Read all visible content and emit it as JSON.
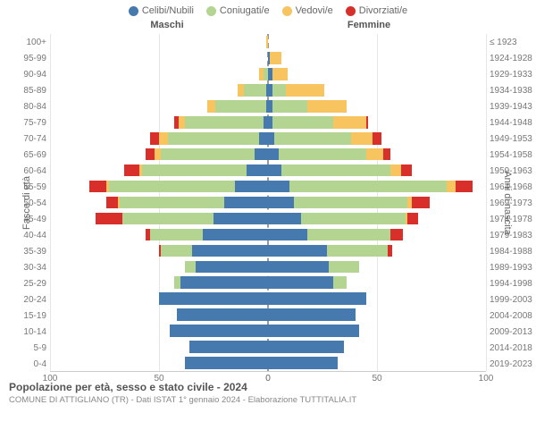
{
  "chart": {
    "type": "population-pyramid",
    "title": "Popolazione per età, sesso e stato civile - 2024",
    "subtitle": "COMUNE DI ATTIGLIANO (TR) - Dati ISTAT 1° gennaio 2024 - Elaborazione TUTTITALIA.IT",
    "header_m": "Maschi",
    "header_f": "Femmine",
    "ylabel_left": "Fasce di età",
    "ylabel_right": "Anni di nascita",
    "colors": {
      "celibi": "#4679ae",
      "coniugati": "#b4d491",
      "vedovi": "#f7c45f",
      "divorziati": "#d82f2b",
      "grid": "#e6e6e6",
      "center": "#999999"
    },
    "legend": [
      {
        "key": "celibi",
        "label": "Celibi/Nubili"
      },
      {
        "key": "coniugati",
        "label": "Coniugati/e"
      },
      {
        "key": "vedovi",
        "label": "Vedovi/e"
      },
      {
        "key": "divorziati",
        "label": "Divorziati/e"
      }
    ],
    "xmax": 100,
    "xticks_m": [
      100,
      50,
      0
    ],
    "xticks_f": [
      0,
      50,
      100
    ],
    "age_bands": [
      "100+",
      "95-99",
      "90-94",
      "85-89",
      "80-84",
      "75-79",
      "70-74",
      "65-69",
      "60-64",
      "55-59",
      "50-54",
      "45-49",
      "40-44",
      "35-39",
      "30-34",
      "25-29",
      "20-24",
      "15-19",
      "10-14",
      "5-9",
      "0-4"
    ],
    "birth_years": [
      "≤ 1923",
      "1924-1928",
      "1929-1933",
      "1934-1938",
      "1939-1943",
      "1944-1948",
      "1949-1953",
      "1954-1958",
      "1959-1963",
      "1964-1968",
      "1969-1973",
      "1974-1978",
      "1979-1983",
      "1984-1988",
      "1989-1993",
      "1994-1998",
      "1999-2003",
      "2004-2008",
      "2009-2013",
      "2014-2018",
      "2019-2023"
    ],
    "rows": [
      {
        "m": {
          "c": 0,
          "g": 0,
          "v": 1,
          "d": 0
        },
        "f": {
          "c": 0,
          "g": 0,
          "v": 0,
          "d": 0
        }
      },
      {
        "m": {
          "c": 0,
          "g": 0,
          "v": 0,
          "d": 0
        },
        "f": {
          "c": 1,
          "g": 0,
          "v": 5,
          "d": 0
        }
      },
      {
        "m": {
          "c": 0,
          "g": 2,
          "v": 2,
          "d": 0
        },
        "f": {
          "c": 2,
          "g": 0,
          "v": 7,
          "d": 0
        }
      },
      {
        "m": {
          "c": 1,
          "g": 10,
          "v": 3,
          "d": 0
        },
        "f": {
          "c": 2,
          "g": 6,
          "v": 18,
          "d": 0
        }
      },
      {
        "m": {
          "c": 1,
          "g": 23,
          "v": 4,
          "d": 0
        },
        "f": {
          "c": 2,
          "g": 16,
          "v": 18,
          "d": 0
        }
      },
      {
        "m": {
          "c": 2,
          "g": 36,
          "v": 3,
          "d": 2
        },
        "f": {
          "c": 2,
          "g": 28,
          "v": 15,
          "d": 1
        }
      },
      {
        "m": {
          "c": 4,
          "g": 42,
          "v": 4,
          "d": 4
        },
        "f": {
          "c": 3,
          "g": 35,
          "v": 10,
          "d": 4
        }
      },
      {
        "m": {
          "c": 6,
          "g": 43,
          "v": 3,
          "d": 4
        },
        "f": {
          "c": 5,
          "g": 40,
          "v": 8,
          "d": 3
        }
      },
      {
        "m": {
          "c": 10,
          "g": 48,
          "v": 1,
          "d": 7
        },
        "f": {
          "c": 6,
          "g": 50,
          "v": 5,
          "d": 5
        }
      },
      {
        "m": {
          "c": 15,
          "g": 58,
          "v": 1,
          "d": 8
        },
        "f": {
          "c": 10,
          "g": 72,
          "v": 4,
          "d": 8
        }
      },
      {
        "m": {
          "c": 20,
          "g": 48,
          "v": 1,
          "d": 5
        },
        "f": {
          "c": 12,
          "g": 52,
          "v": 2,
          "d": 8
        }
      },
      {
        "m": {
          "c": 25,
          "g": 42,
          "v": 0,
          "d": 12
        },
        "f": {
          "c": 15,
          "g": 48,
          "v": 1,
          "d": 5
        }
      },
      {
        "m": {
          "c": 30,
          "g": 24,
          "v": 0,
          "d": 2
        },
        "f": {
          "c": 18,
          "g": 38,
          "v": 0,
          "d": 6
        }
      },
      {
        "m": {
          "c": 35,
          "g": 14,
          "v": 0,
          "d": 1
        },
        "f": {
          "c": 27,
          "g": 28,
          "v": 0,
          "d": 2
        }
      },
      {
        "m": {
          "c": 33,
          "g": 5,
          "v": 0,
          "d": 0
        },
        "f": {
          "c": 28,
          "g": 14,
          "v": 0,
          "d": 0
        }
      },
      {
        "m": {
          "c": 40,
          "g": 3,
          "v": 0,
          "d": 0
        },
        "f": {
          "c": 30,
          "g": 6,
          "v": 0,
          "d": 0
        }
      },
      {
        "m": {
          "c": 50,
          "g": 0,
          "v": 0,
          "d": 0
        },
        "f": {
          "c": 45,
          "g": 0,
          "v": 0,
          "d": 0
        }
      },
      {
        "m": {
          "c": 42,
          "g": 0,
          "v": 0,
          "d": 0
        },
        "f": {
          "c": 40,
          "g": 0,
          "v": 0,
          "d": 0
        }
      },
      {
        "m": {
          "c": 45,
          "g": 0,
          "v": 0,
          "d": 0
        },
        "f": {
          "c": 42,
          "g": 0,
          "v": 0,
          "d": 0
        }
      },
      {
        "m": {
          "c": 36,
          "g": 0,
          "v": 0,
          "d": 0
        },
        "f": {
          "c": 35,
          "g": 0,
          "v": 0,
          "d": 0
        }
      },
      {
        "m": {
          "c": 38,
          "g": 0,
          "v": 0,
          "d": 0
        },
        "f": {
          "c": 32,
          "g": 0,
          "v": 0,
          "d": 0
        }
      }
    ]
  }
}
